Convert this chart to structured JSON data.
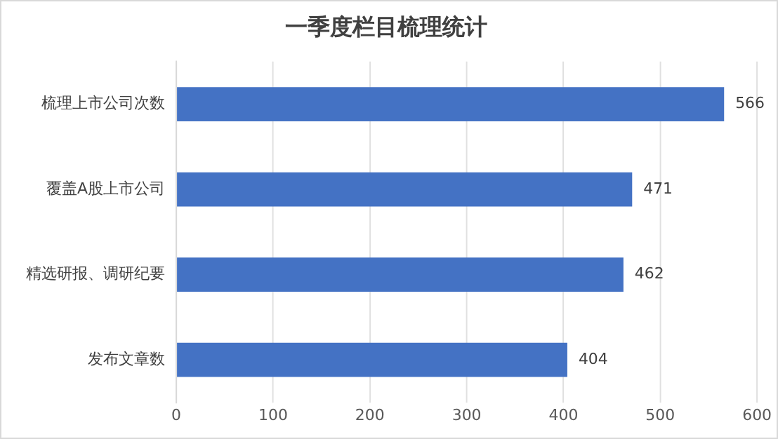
{
  "chart_data": {
    "type": "bar",
    "orientation": "horizontal",
    "title": "一季度栏目梳理统计",
    "categories": [
      "梳理上市公司次数",
      "覆盖A股上市公司",
      "精选研报、调研纪要",
      "发布文章数"
    ],
    "values": [
      566,
      471,
      462,
      404
    ],
    "color": "#4472c4",
    "xlim": [
      0,
      600
    ],
    "xticks": [
      0,
      100,
      200,
      300,
      400,
      500,
      600
    ],
    "grid": "x",
    "data_labels": true,
    "legend": false
  }
}
